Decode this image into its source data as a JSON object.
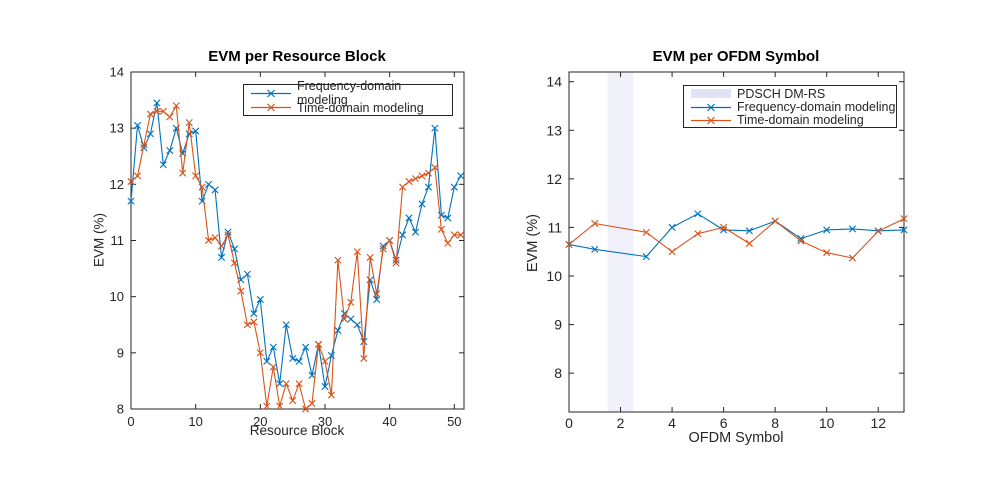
{
  "figure": {
    "background": "#ffffff"
  },
  "colors": {
    "axis": "#262626",
    "title_text": "#000000",
    "frequency_series": "#0072BD",
    "time_series": "#D95319",
    "dmrs_band": "#F1F1FB",
    "dmrs_band_legend": "#E2E2F7"
  },
  "chart_data": [
    {
      "type": "line",
      "title": "EVM per Resource Block",
      "xlabel": "Resource Block",
      "ylabel": "EVM (%)",
      "xlim": [
        0,
        51.5
      ],
      "ylim": [
        8,
        14
      ],
      "xticks": [
        0,
        10,
        20,
        30,
        40,
        50
      ],
      "yticks": [
        8,
        9,
        10,
        11,
        12,
        13,
        14
      ],
      "grid": false,
      "legend_position": "top-right-inside",
      "x": [
        0,
        1,
        2,
        3,
        4,
        5,
        6,
        7,
        8,
        9,
        10,
        11,
        12,
        13,
        14,
        15,
        16,
        17,
        18,
        19,
        20,
        21,
        22,
        23,
        24,
        25,
        26,
        27,
        28,
        29,
        30,
        31,
        32,
        33,
        34,
        35,
        36,
        37,
        38,
        39,
        40,
        41,
        42,
        43,
        44,
        45,
        46,
        47,
        48,
        49,
        50,
        51
      ],
      "series": [
        {
          "name": "Frequency-domain modeling",
          "color": "#0072BD",
          "marker": "x",
          "values": [
            11.7,
            13.05,
            12.65,
            12.9,
            13.45,
            12.35,
            12.6,
            13.0,
            12.55,
            12.9,
            12.95,
            11.7,
            12.0,
            11.9,
            10.7,
            11.15,
            10.85,
            10.3,
            10.4,
            9.7,
            9.95,
            8.85,
            9.1,
            8.45,
            9.5,
            8.9,
            8.85,
            9.1,
            8.6,
            9.15,
            8.4,
            8.95,
            9.4,
            9.7,
            9.6,
            9.5,
            9.2,
            10.3,
            9.95,
            10.9,
            11.0,
            10.65,
            11.1,
            11.4,
            11.15,
            11.65,
            11.95,
            13.0,
            11.45,
            11.4,
            11.95,
            12.15
          ]
        },
        {
          "name": "Time-domain modeling",
          "color": "#D95319",
          "marker": "x",
          "values": [
            12.05,
            12.15,
            12.7,
            13.25,
            13.3,
            13.3,
            13.2,
            13.4,
            12.2,
            13.1,
            12.15,
            11.95,
            11.0,
            11.05,
            10.9,
            11.1,
            10.6,
            10.1,
            9.5,
            9.55,
            9.0,
            8.05,
            8.75,
            8.05,
            8.45,
            8.15,
            8.45,
            8.0,
            8.1,
            9.15,
            8.85,
            8.25,
            10.65,
            9.6,
            9.9,
            10.8,
            8.9,
            10.7,
            10.05,
            10.85,
            11.0,
            10.6,
            11.95,
            12.05,
            12.1,
            12.15,
            12.2,
            12.3,
            11.2,
            10.95,
            11.1,
            11.1
          ]
        }
      ]
    },
    {
      "type": "line",
      "title": "EVM per OFDM Symbol",
      "xlabel": "OFDM Symbol",
      "ylabel": "EVM (%)",
      "xlim": [
        0,
        13
      ],
      "ylim": [
        7.2,
        14.2
      ],
      "xticks": [
        0,
        2,
        4,
        6,
        8,
        10,
        12
      ],
      "yticks": [
        8,
        9,
        10,
        11,
        12,
        13,
        14
      ],
      "grid": false,
      "legend_position": "top-right-inside",
      "band": {
        "label": "PDSCH DM-RS",
        "x0": 1.5,
        "x1": 2.5,
        "color": "#F1F1FB",
        "legend_color": "#E2E2F7"
      },
      "x": [
        0,
        1,
        3,
        4,
        5,
        6,
        7,
        8,
        9,
        10,
        11,
        12,
        13
      ],
      "series": [
        {
          "name": "Frequency-domain modeling",
          "color": "#0072BD",
          "marker": "x",
          "values": [
            10.65,
            10.55,
            10.4,
            11.0,
            11.28,
            10.95,
            10.93,
            11.13,
            10.77,
            10.95,
            10.97,
            10.93,
            10.95
          ]
        },
        {
          "name": "Time-domain modeling",
          "color": "#D95319",
          "marker": "x",
          "values": [
            10.65,
            11.08,
            10.9,
            10.5,
            10.87,
            11.0,
            10.67,
            11.13,
            10.72,
            10.48,
            10.37,
            10.92,
            11.18
          ]
        }
      ]
    }
  ]
}
